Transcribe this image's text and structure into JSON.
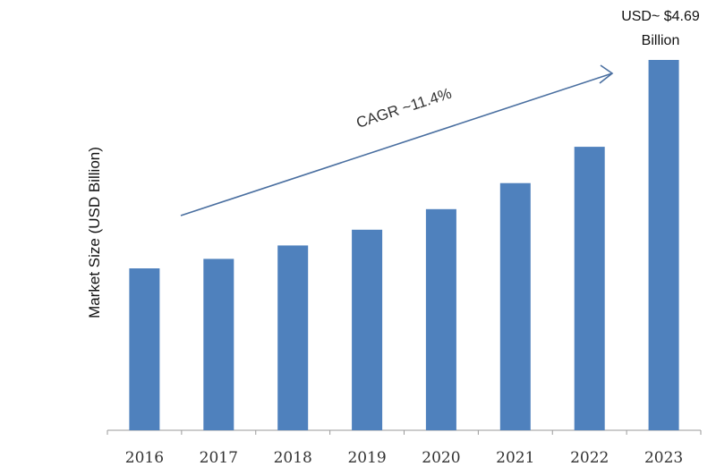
{
  "chart_data": {
    "type": "bar",
    "categories": [
      "2016",
      "2017",
      "2018",
      "2019",
      "2020",
      "2021",
      "2022",
      "2023"
    ],
    "values": [
      2.05,
      2.17,
      2.34,
      2.54,
      2.8,
      3.13,
      3.59,
      4.69
    ],
    "title": "",
    "xlabel": "",
    "ylabel": "Market Size (USD Billion)",
    "ylim": [
      0,
      4.69
    ],
    "grid": false,
    "legend": "none",
    "bar_color": "#4f81bd",
    "annotations": {
      "top_label_line1": "USD~ $4.69",
      "top_label_line2": "Billion",
      "cagr": "CAGR ~11.4%"
    },
    "arrow_color": "#4a6fa0"
  }
}
